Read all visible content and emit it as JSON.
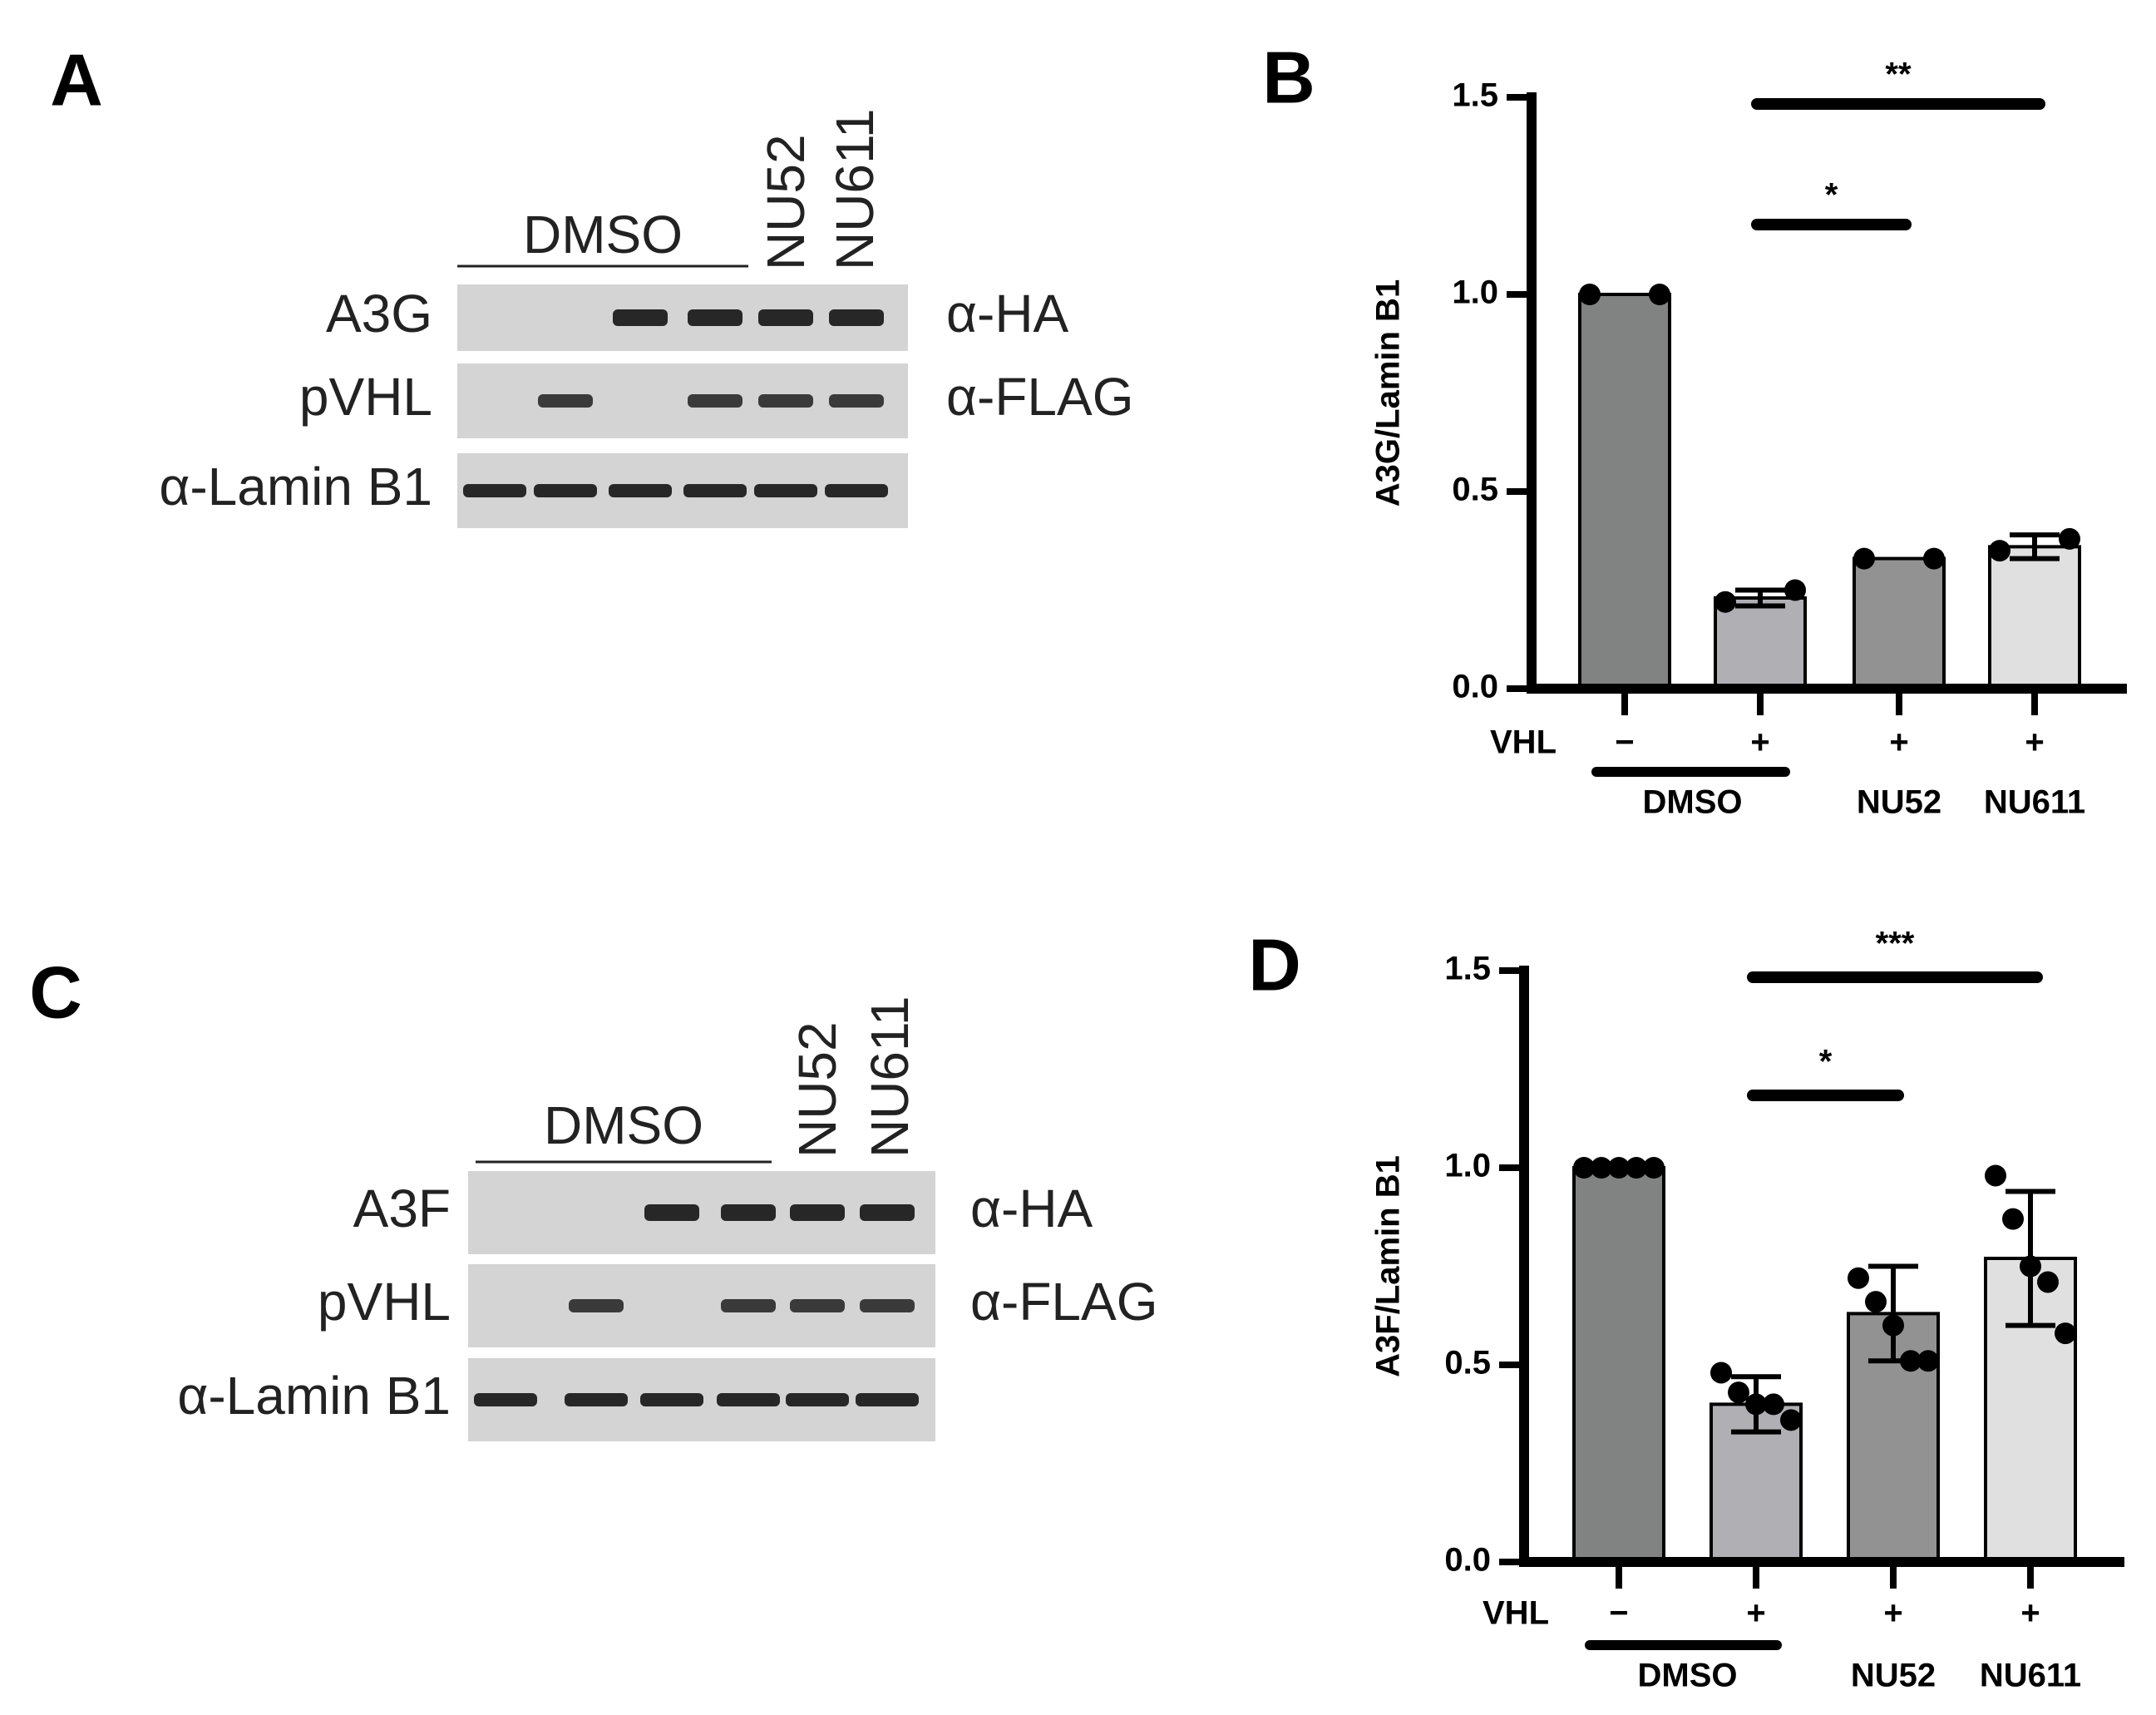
{
  "blots": [
    {
      "letter": "A",
      "treatment": "DMSO",
      "drugs": [
        "NU52",
        "NU611"
      ],
      "rows": [
        {
          "label": "A3G",
          "antibody": "α-HA"
        },
        {
          "label": "pVHL",
          "antibody": "α-FLAG"
        },
        {
          "label": "α-Lamin B1"
        }
      ]
    },
    {
      "letter": "C",
      "treatment": "DMSO",
      "drugs": [
        "NU52",
        "NU611"
      ],
      "rows": [
        {
          "label": "A3F",
          "antibody": "α-HA"
        },
        {
          "label": "pVHL",
          "antibody": "α-FLAG"
        },
        {
          "label": "α-Lamin B1"
        }
      ]
    }
  ],
  "chart_data": [
    {
      "type": "bar",
      "letter": "B",
      "ylabel": "A3G/Lamin B1",
      "xlabel": "VHL",
      "categories": [
        "−",
        "+",
        "+",
        "+"
      ],
      "groups": [
        "DMSO",
        "NU52",
        "NU611"
      ],
      "values": [
        1.0,
        0.23,
        0.33,
        0.36
      ],
      "errors": [
        0,
        0.02,
        0,
        0.03
      ],
      "points": [
        [
          1.0,
          1.0
        ],
        [
          0.22,
          0.25
        ],
        [
          0.33,
          0.33
        ],
        [
          0.35,
          0.38
        ]
      ],
      "colors": [
        "#808382",
        "#b0afb4",
        "#929292",
        "#e0e0e0"
      ],
      "significance": [
        "*",
        "**"
      ],
      "ylim": [
        0,
        1.5
      ],
      "yticks": [
        {
          "value": 0,
          "label": "0.0"
        },
        0.5,
        {
          "value": 1,
          "label": "1.0"
        },
        1.5
      ]
    },
    {
      "type": "bar",
      "letter": "D",
      "ylabel": "A3F/Lamin B1",
      "xlabel": "VHL",
      "categories": [
        "−",
        "+",
        "+",
        "+"
      ],
      "groups": [
        "DMSO",
        "NU52",
        "NU611"
      ],
      "values": [
        1.0,
        0.4,
        0.63,
        0.77
      ],
      "errors": [
        0,
        0.07,
        0.12,
        0.17
      ],
      "points": [
        [
          1.0,
          1.0,
          1.0,
          1.0,
          1.0
        ],
        [
          0.48,
          0.43,
          0.4,
          0.4,
          0.36
        ],
        [
          0.72,
          0.66,
          0.6,
          0.51,
          0.51
        ],
        [
          0.98,
          0.87,
          0.75,
          0.71,
          0.58
        ]
      ],
      "colors": [
        "#808382",
        "#b0afb4",
        "#929292",
        "#e0e0e0"
      ],
      "significance": [
        "*",
        "***"
      ],
      "ylim": [
        0,
        1.5
      ],
      "yticks": [
        {
          "value": 0,
          "label": "0.0"
        },
        0.5,
        {
          "value": 1,
          "label": "1.0"
        },
        1.5
      ]
    }
  ]
}
